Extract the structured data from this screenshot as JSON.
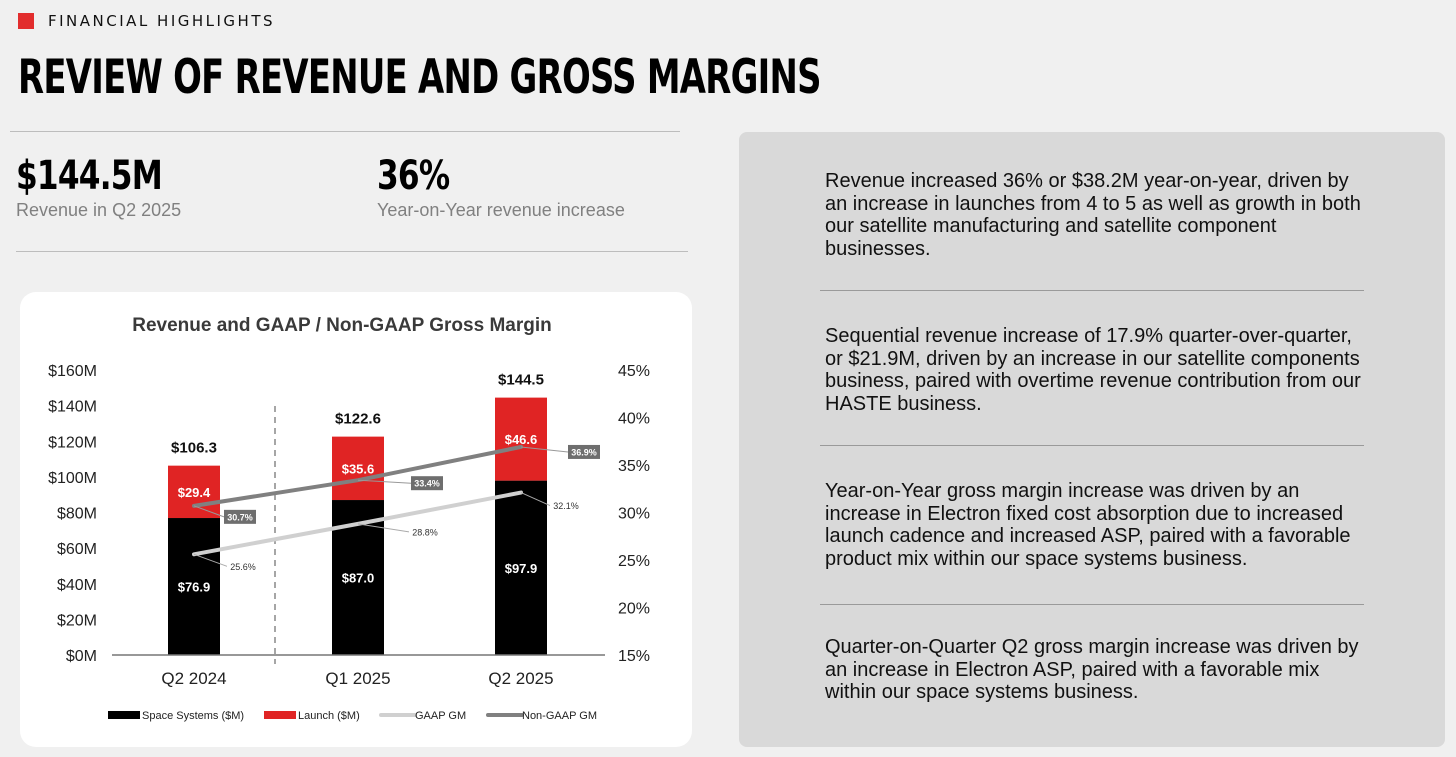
{
  "header": {
    "section_label": "FINANCIAL HIGHLIGHTS",
    "title": "REVIEW OF REVENUE AND GROSS MARGINS",
    "accent_color": "#e22d2d"
  },
  "kpis": [
    {
      "value": "$144.5M",
      "label": "Revenue in Q2 2025"
    },
    {
      "value": "36%",
      "label": "Year-on-Year revenue increase"
    }
  ],
  "chart_data": {
    "type": "bar",
    "title": "Revenue and GAAP / Non-GAAP Gross Margin",
    "stacked": true,
    "categories": [
      "Q2 2024",
      "Q1 2025",
      "Q2 2025"
    ],
    "series": [
      {
        "name": "Space Systems ($M)",
        "type": "bar",
        "color": "#000000",
        "values": [
          76.9,
          87.0,
          97.9
        ],
        "labels": [
          "$76.9",
          "$87.0",
          "$97.9"
        ]
      },
      {
        "name": "Launch ($M)",
        "type": "bar",
        "color": "#e02424",
        "values": [
          29.4,
          35.6,
          46.6
        ],
        "labels": [
          "$29.4",
          "$35.6",
          "$46.6"
        ]
      },
      {
        "name": "GAAP GM",
        "type": "line",
        "axis": "right",
        "color": "#d0d0d0",
        "values": [
          25.6,
          28.8,
          32.1
        ],
        "labels": [
          "25.6%",
          "28.8%",
          "32.1%"
        ]
      },
      {
        "name": "Non-GAAP GM",
        "type": "line",
        "axis": "right",
        "color": "#808080",
        "values": [
          30.7,
          33.4,
          36.9
        ],
        "labels": [
          "30.7%",
          "33.4%",
          "36.9%"
        ]
      }
    ],
    "totals": [
      106.3,
      122.6,
      144.5
    ],
    "total_labels": [
      "$106.3",
      "$122.6",
      "$144.5"
    ],
    "y_left": {
      "ylim": [
        0,
        160
      ],
      "ticks": [
        0,
        20,
        40,
        60,
        80,
        100,
        120,
        140,
        160
      ],
      "tick_labels": [
        "$0M",
        "$20M",
        "$40M",
        "$60M",
        "$80M",
        "$100M",
        "$120M",
        "$140M",
        "$160M"
      ]
    },
    "y_right": {
      "ylim": [
        15,
        45
      ],
      "ticks": [
        15,
        20,
        25,
        30,
        35,
        40,
        45
      ],
      "tick_labels": [
        "15%",
        "20%",
        "25%",
        "30%",
        "35%",
        "40%",
        "45%"
      ]
    },
    "grid": false,
    "legend_position": "bottom"
  },
  "commentary": [
    "Revenue increased 36% or $38.2M year-on-year, driven by an increase in launches from 4 to 5 as well as growth in both our satellite manufacturing and satellite component businesses.",
    "Sequential revenue increase of 17.9% quarter-over-quarter, or $21.9M, driven by an increase in our satellite components business, paired with overtime revenue contribution from our HASTE business.",
    "Year-on-Year gross margin increase was driven by an increase in Electron fixed cost absorption due to increased launch cadence and increased ASP, paired with a favorable product mix within our space systems business.",
    "Quarter-on-Quarter Q2 gross margin increase was driven by an increase in Electron ASP, paired with a favorable mix within our space systems business."
  ]
}
